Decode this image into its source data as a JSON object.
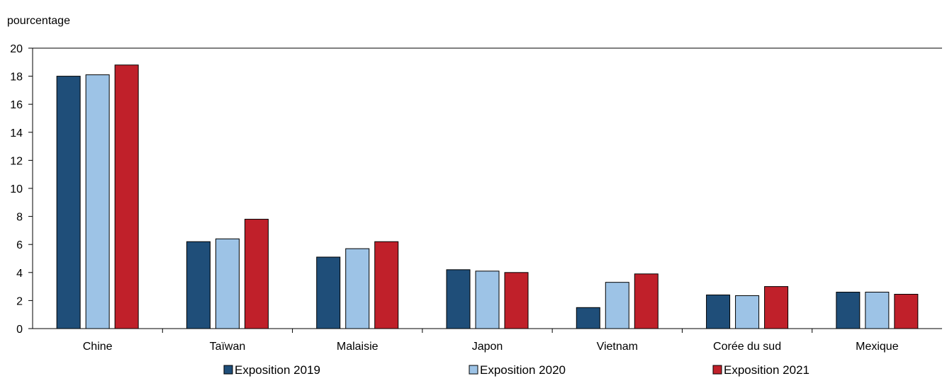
{
  "chart_data": {
    "type": "bar",
    "ylabel": "pourcentage",
    "ylim": [
      0,
      20
    ],
    "ytick_step": 2,
    "categories": [
      "Chine",
      "Taïwan",
      "Malaisie",
      "Japon",
      "Vietnam",
      "Corée du sud",
      "Mexique"
    ],
    "series": [
      {
        "name": "Exposition 2019",
        "color": "#1f4e79",
        "values": [
          18.0,
          6.2,
          5.1,
          4.2,
          1.5,
          2.4,
          2.6
        ]
      },
      {
        "name": "Exposition 2020",
        "color": "#9dc3e6",
        "values": [
          18.1,
          6.4,
          5.7,
          4.1,
          3.3,
          2.35,
          2.6
        ]
      },
      {
        "name": "Exposition 2021",
        "color": "#c0202a",
        "values": [
          18.8,
          7.8,
          6.2,
          4.0,
          3.9,
          3.0,
          2.45
        ]
      }
    ],
    "grid": false,
    "legend_position": "bottom"
  }
}
